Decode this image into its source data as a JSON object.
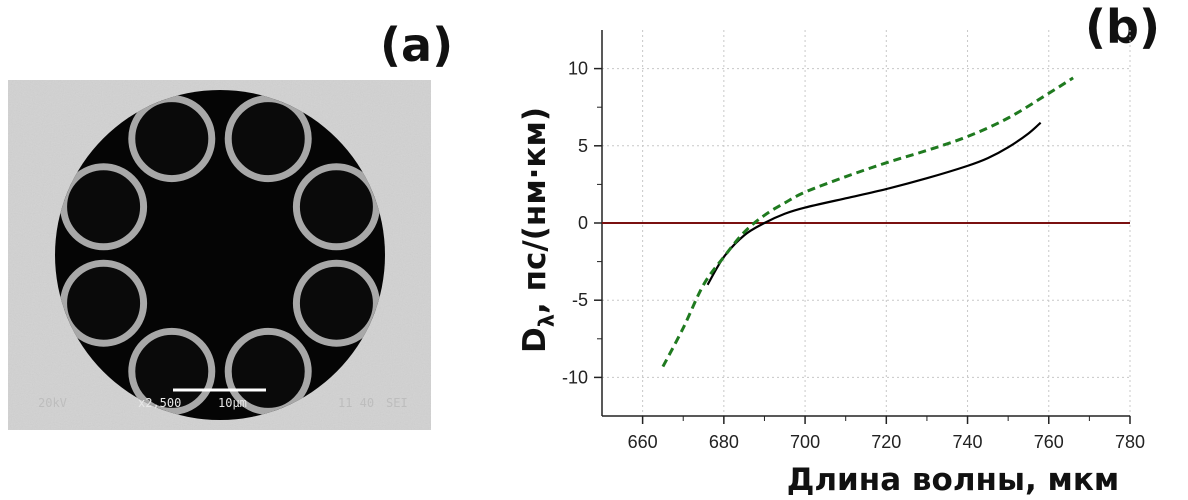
{
  "panels": {
    "a": {
      "label": "(a)"
    },
    "b": {
      "label": "(b)"
    }
  },
  "sem_image": {
    "scale_bar_label": "10µm",
    "footer_text": [
      "20kV",
      "x2,500",
      "10µm",
      "11 40",
      "SEI"
    ]
  },
  "chart_data": {
    "type": "line",
    "xlabel": "Длина волны, мкм",
    "ylabel_main": "D",
    "ylabel_sub": "λ",
    "ylabel_rest": ", пс/(нм·км)",
    "xlim": [
      650,
      780
    ],
    "ylim": [
      -12.5,
      12.5
    ],
    "x_ticks": [
      660,
      680,
      700,
      720,
      740,
      760,
      780
    ],
    "y_ticks": [
      10,
      5,
      0,
      -5,
      -10
    ],
    "y_tick_labels": [
      "10",
      "5",
      "0",
      "-5",
      "-10"
    ],
    "grid": true,
    "series": [
      {
        "style": "solid",
        "color": "#000000",
        "x": [
          676,
          680,
          685,
          690,
          695,
          700,
          710,
          720,
          730,
          740,
          745,
          750,
          755,
          758
        ],
        "y": [
          -4.0,
          -2.2,
          -0.8,
          0.0,
          0.6,
          1.0,
          1.6,
          2.2,
          2.9,
          3.7,
          4.2,
          4.9,
          5.8,
          6.5
        ]
      },
      {
        "style": "dashed",
        "color": "#1f7a1f",
        "x": [
          665,
          670,
          675,
          680,
          685,
          690,
          695,
          700,
          710,
          720,
          730,
          740,
          750,
          760,
          766
        ],
        "y": [
          -9.3,
          -6.8,
          -4.0,
          -2.2,
          -0.6,
          0.5,
          1.3,
          2.0,
          3.0,
          3.9,
          4.7,
          5.6,
          6.8,
          8.4,
          9.4
        ]
      }
    ],
    "reference_line": {
      "y": 0,
      "color": "#7a1010"
    }
  }
}
